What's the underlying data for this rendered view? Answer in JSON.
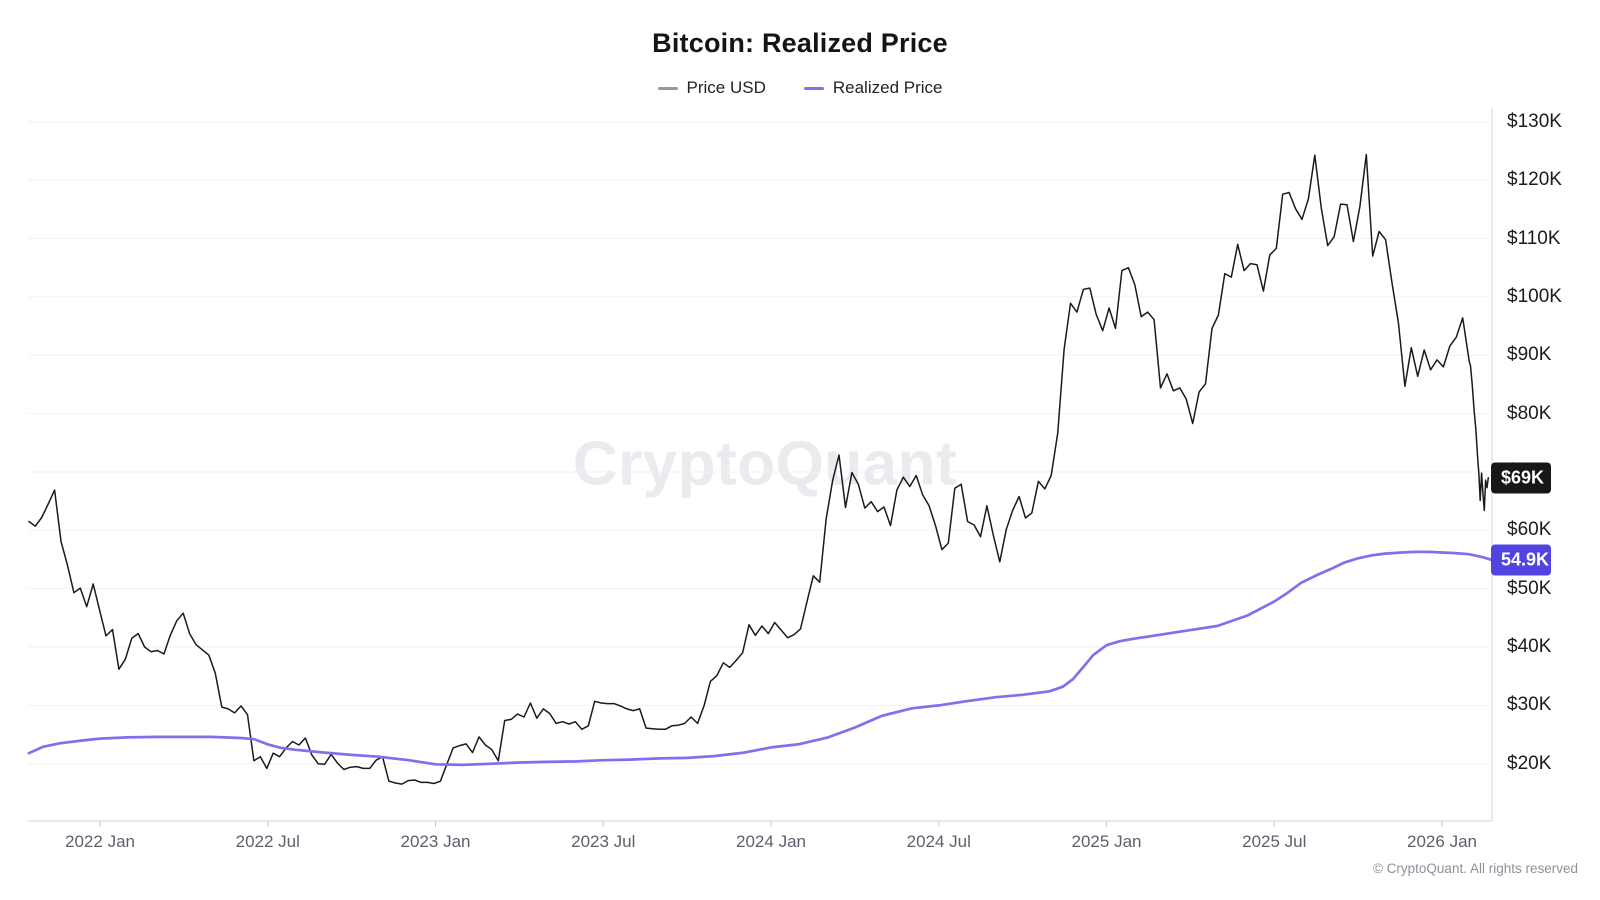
{
  "header": {
    "title": "Bitcoin: Realized Price"
  },
  "legend": [
    {
      "label": "Price USD",
      "swatch_color": "#96969b"
    },
    {
      "label": "Realized Price",
      "swatch_color": "#8070ec"
    }
  ],
  "watermark": {
    "text": "CryptoQuant"
  },
  "footer": {
    "text": "© CryptoQuant. All rights reserved"
  },
  "chart_data": {
    "type": "line",
    "title": "Bitcoin: Realized Price",
    "grid": "horizontal-only",
    "legend_position": "top-center",
    "y_unit": "USD (thousands)",
    "ylim": [
      14,
      133
    ],
    "y_ticks": [
      {
        "v": 130,
        "label": "$130K"
      },
      {
        "v": 120,
        "label": "$120K"
      },
      {
        "v": 110,
        "label": "$110K"
      },
      {
        "v": 100,
        "label": "$100K"
      },
      {
        "v": 90,
        "label": "$90K"
      },
      {
        "v": 80,
        "label": "$80K"
      },
      {
        "v": 70,
        "label": "$70K"
      },
      {
        "v": 60,
        "label": "$60K"
      },
      {
        "v": 50,
        "label": "$50K"
      },
      {
        "v": 40,
        "label": "$40K"
      },
      {
        "v": 30,
        "label": "$30K"
      },
      {
        "v": 20,
        "label": "$20K"
      }
    ],
    "x_domain_decimal_years": [
      2021.788,
      2026.15
    ],
    "x_ticks": [
      {
        "t": 2022.0,
        "label": "2022 Jan"
      },
      {
        "t": 2022.5,
        "label": "2022 Jul"
      },
      {
        "t": 2023.0,
        "label": "2023 Jan"
      },
      {
        "t": 2023.5,
        "label": "2023 Jul"
      },
      {
        "t": 2024.0,
        "label": "2024 Jan"
      },
      {
        "t": 2024.5,
        "label": "2024 Jul"
      },
      {
        "t": 2025.0,
        "label": "2025 Jan"
      },
      {
        "t": 2025.5,
        "label": "2025 Jul"
      },
      {
        "t": 2026.0,
        "label": "2026 Jan"
      }
    ],
    "series": [
      {
        "name": "Price USD",
        "color": "#1a1a1f",
        "stroke_width": 1.5,
        "cadence": "weekly",
        "weekly_start_decimal_year": 2021.788,
        "weekly_step_decimal_year": 0.019165,
        "weekly_segments": [
          {
            "period": "2021 Oct-Dec",
            "values_kusd": [
              61.5,
              60.7,
              62.2,
              64.5,
              66.9,
              58.1,
              54.0,
              49.3,
              50.1,
              46.9,
              50.8,
              46.3
            ]
          },
          {
            "period": "2022",
            "values_kusd": [
              41.9,
              43.0,
              36.2,
              37.9,
              41.5,
              42.3,
              40.0,
              39.2,
              39.4,
              38.8,
              42.0,
              44.5,
              45.8,
              42.3,
              40.4,
              39.5,
              38.6,
              35.5,
              29.7,
              29.4,
              28.7,
              29.9,
              28.4,
              20.5,
              21.2,
              19.2,
              21.8,
              21.2,
              22.7,
              23.8,
              23.2,
              24.4,
              21.5,
              20.0,
              19.9,
              21.6,
              20.1,
              19.0,
              19.4,
              19.5,
              19.2,
              19.2,
              20.6,
              21.2,
              17.0,
              16.7,
              16.5,
              17.1,
              17.2,
              16.8,
              16.8,
              16.6
            ]
          },
          {
            "period": "2023",
            "values_kusd": [
              17.0,
              19.9,
              22.7,
              23.1,
              23.4,
              21.9,
              24.6,
              23.2,
              22.4,
              20.5,
              27.4,
              27.6,
              28.5,
              28.0,
              30.4,
              27.8,
              29.4,
              28.6,
              26.9,
              27.2,
              26.8,
              27.2,
              25.9,
              26.5,
              30.7,
              30.4,
              30.3,
              30.3,
              29.9,
              29.4,
              29.1,
              29.4,
              26.1,
              26.0,
              25.9,
              25.9,
              26.5,
              26.6,
              26.9,
              28.0,
              26.9,
              29.9,
              34.1,
              35.1,
              37.3,
              36.5,
              37.7,
              39.0,
              43.8,
              42.0,
              43.6,
              42.3
            ]
          },
          {
            "period": "2024",
            "values_kusd": [
              44.2,
              42.9,
              41.6,
              42.1,
              43.1,
              47.7,
              52.2,
              51.1,
              62.0,
              68.5,
              72.9,
              63.9,
              69.9,
              67.9,
              63.8,
              64.9,
              63.2,
              64.0,
              60.8,
              66.9,
              69.1,
              67.5,
              69.4,
              66.1,
              64.2,
              60.8,
              56.7,
              57.8,
              67.2,
              67.9,
              61.5,
              60.9,
              58.9,
              64.2,
              59.1,
              54.6,
              60.1,
              63.4,
              65.8,
              62.1,
              63.0,
              68.4,
              67.1,
              69.4,
              76.6,
              91.0,
              98.9,
              97.4,
              101.3,
              101.5,
              97.0,
              94.2
            ]
          },
          {
            "period": "2025",
            "values_kusd": [
              98.1,
              94.6,
              104.5,
              105.0,
              102.1,
              96.6,
              97.4,
              96.1,
              84.4,
              86.8,
              83.9,
              84.4,
              82.5,
              78.3,
              83.7,
              85.1,
              94.6,
              96.9,
              104.0,
              103.4,
              109.0,
              104.5,
              105.7,
              105.5,
              101.0,
              107.2,
              108.3,
              117.6,
              117.9,
              115.1,
              113.3,
              116.8,
              124.3,
              115.2,
              108.8,
              110.3,
              115.9,
              115.8,
              109.5,
              115.5,
              124.4,
              107.0,
              111.2,
              109.8,
              102.4,
              95.6,
              84.7,
              91.3,
              86.4,
              90.9,
              87.5,
              89.2
            ]
          },
          {
            "period": "2026 Jan",
            "values_kusd": [
              88.0,
              91.6,
              93.1,
              96.4,
              89.0
            ]
          }
        ],
        "tail_points_kusd": [
          [
            2026.085,
            88.2
          ],
          [
            2026.09,
            85.0
          ],
          [
            2026.096,
            80.4
          ],
          [
            2026.101,
            77.2
          ],
          [
            2026.106,
            72.6
          ],
          [
            2026.11,
            69.6
          ],
          [
            2026.114,
            65.1
          ],
          [
            2026.118,
            69.8
          ],
          [
            2026.122,
            66.4
          ],
          [
            2026.126,
            63.4
          ],
          [
            2026.13,
            68.6
          ],
          [
            2026.134,
            67.3
          ],
          [
            2026.138,
            69.0
          ]
        ],
        "last_value_badge": {
          "text": "$69K",
          "value_kusd": 69,
          "bg": "#17171a",
          "text_color": "#ffffff"
        }
      },
      {
        "name": "Realized Price",
        "color": "#8070ec",
        "stroke_width": 2.7,
        "cadence": "irregular",
        "points_kusd": [
          [
            2021.788,
            21.8
          ],
          [
            2021.83,
            22.9
          ],
          [
            2021.88,
            23.5
          ],
          [
            2021.95,
            24.0
          ],
          [
            2022.0,
            24.3
          ],
          [
            2022.08,
            24.5
          ],
          [
            2022.17,
            24.6
          ],
          [
            2022.25,
            24.6
          ],
          [
            2022.33,
            24.6
          ],
          [
            2022.42,
            24.4
          ],
          [
            2022.46,
            24.2
          ],
          [
            2022.5,
            23.3
          ],
          [
            2022.54,
            22.7
          ],
          [
            2022.58,
            22.4
          ],
          [
            2022.67,
            21.9
          ],
          [
            2022.75,
            21.5
          ],
          [
            2022.83,
            21.2
          ],
          [
            2022.92,
            20.6
          ],
          [
            2023.0,
            19.9
          ],
          [
            2023.08,
            19.8
          ],
          [
            2023.17,
            20.0
          ],
          [
            2023.25,
            20.2
          ],
          [
            2023.33,
            20.3
          ],
          [
            2023.42,
            20.4
          ],
          [
            2023.5,
            20.6
          ],
          [
            2023.58,
            20.7
          ],
          [
            2023.67,
            20.9
          ],
          [
            2023.75,
            21.0
          ],
          [
            2023.83,
            21.3
          ],
          [
            2023.92,
            21.9
          ],
          [
            2024.0,
            22.8
          ],
          [
            2024.08,
            23.3
          ],
          [
            2024.17,
            24.5
          ],
          [
            2024.25,
            26.2
          ],
          [
            2024.33,
            28.2
          ],
          [
            2024.42,
            29.5
          ],
          [
            2024.5,
            30.0
          ],
          [
            2024.58,
            30.7
          ],
          [
            2024.67,
            31.4
          ],
          [
            2024.75,
            31.8
          ],
          [
            2024.83,
            32.4
          ],
          [
            2024.87,
            33.2
          ],
          [
            2024.9,
            34.5
          ],
          [
            2024.93,
            36.5
          ],
          [
            2024.96,
            38.6
          ],
          [
            2025.0,
            40.3
          ],
          [
            2025.04,
            41.0
          ],
          [
            2025.08,
            41.4
          ],
          [
            2025.17,
            42.2
          ],
          [
            2025.25,
            42.9
          ],
          [
            2025.33,
            43.6
          ],
          [
            2025.42,
            45.4
          ],
          [
            2025.5,
            47.8
          ],
          [
            2025.54,
            49.3
          ],
          [
            2025.58,
            51.0
          ],
          [
            2025.63,
            52.4
          ],
          [
            2025.67,
            53.4
          ],
          [
            2025.71,
            54.5
          ],
          [
            2025.75,
            55.2
          ],
          [
            2025.79,
            55.7
          ],
          [
            2025.83,
            56.0
          ],
          [
            2025.88,
            56.2
          ],
          [
            2025.92,
            56.3
          ],
          [
            2025.96,
            56.3
          ],
          [
            2026.0,
            56.2
          ],
          [
            2026.04,
            56.1
          ],
          [
            2026.08,
            55.9
          ],
          [
            2026.12,
            55.4
          ],
          [
            2026.15,
            54.9
          ]
        ],
        "last_value_badge": {
          "text": "54.9K",
          "value_kusd": 54.9,
          "bg": "#5244e2",
          "text_color": "#ffffff"
        }
      }
    ]
  }
}
